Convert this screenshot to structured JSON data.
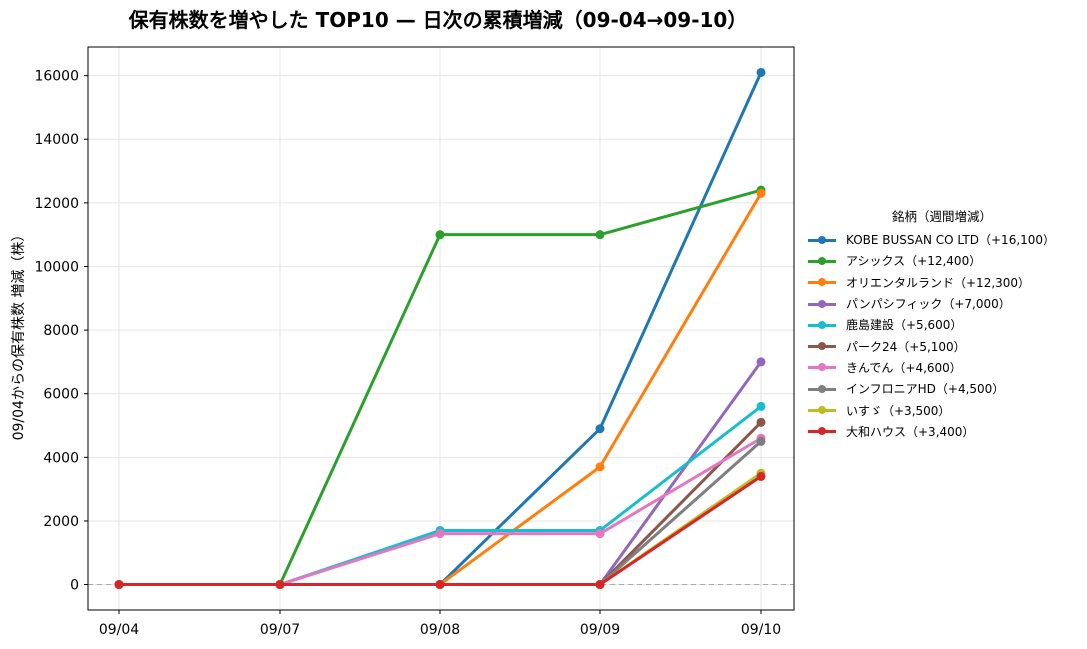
{
  "chart_data": {
    "type": "line",
    "title": "保有株数を増やした TOP10 — 日次の累積増減（09-04→09-10）",
    "ylabel": "09/04からの保有株数 増減（株）",
    "xlabel": "",
    "categories": [
      "09/04",
      "09/07",
      "09/08",
      "09/09",
      "09/10"
    ],
    "ylim": [
      -800,
      16900
    ],
    "yticks": [
      0,
      2000,
      4000,
      6000,
      8000,
      10000,
      12000,
      14000,
      16000
    ],
    "grid": true,
    "zero_line": true,
    "legend_title": "銘柄（週間増減）",
    "legend_position": "right",
    "series": [
      {
        "name": "KOBE BUSSAN CO LTD（+16,100）",
        "color": "#1f77b4",
        "values": [
          0,
          0,
          0,
          4900,
          16100
        ]
      },
      {
        "name": "アシックス（+12,400）",
        "color": "#2ca02c",
        "values": [
          0,
          0,
          11000,
          11000,
          12400
        ]
      },
      {
        "name": "オリエンタルランド（+12,300）",
        "color": "#ff7f0e",
        "values": [
          0,
          0,
          0,
          3700,
          12300
        ]
      },
      {
        "name": "パンパシフィック（+7,000）",
        "color": "#9467bd",
        "values": [
          0,
          0,
          0,
          0,
          7000
        ]
      },
      {
        "name": "鹿島建設（+5,600）",
        "color": "#17becf",
        "values": [
          0,
          0,
          1700,
          1700,
          5600
        ]
      },
      {
        "name": "パーク24（+5,100）",
        "color": "#8c564b",
        "values": [
          0,
          0,
          0,
          0,
          5100
        ]
      },
      {
        "name": "きんでん（+4,600）",
        "color": "#e377c2",
        "values": [
          0,
          0,
          1600,
          1600,
          4600
        ]
      },
      {
        "name": "インフロニアHD（+4,500）",
        "color": "#7f7f7f",
        "values": [
          0,
          0,
          0,
          0,
          4500
        ]
      },
      {
        "name": "いすゞ（+3,500）",
        "color": "#bcbd22",
        "values": [
          0,
          0,
          0,
          0,
          3500
        ]
      },
      {
        "name": "大和ハウス（+3,400）",
        "color": "#d62728",
        "values": [
          0,
          0,
          0,
          0,
          3400
        ]
      }
    ]
  }
}
